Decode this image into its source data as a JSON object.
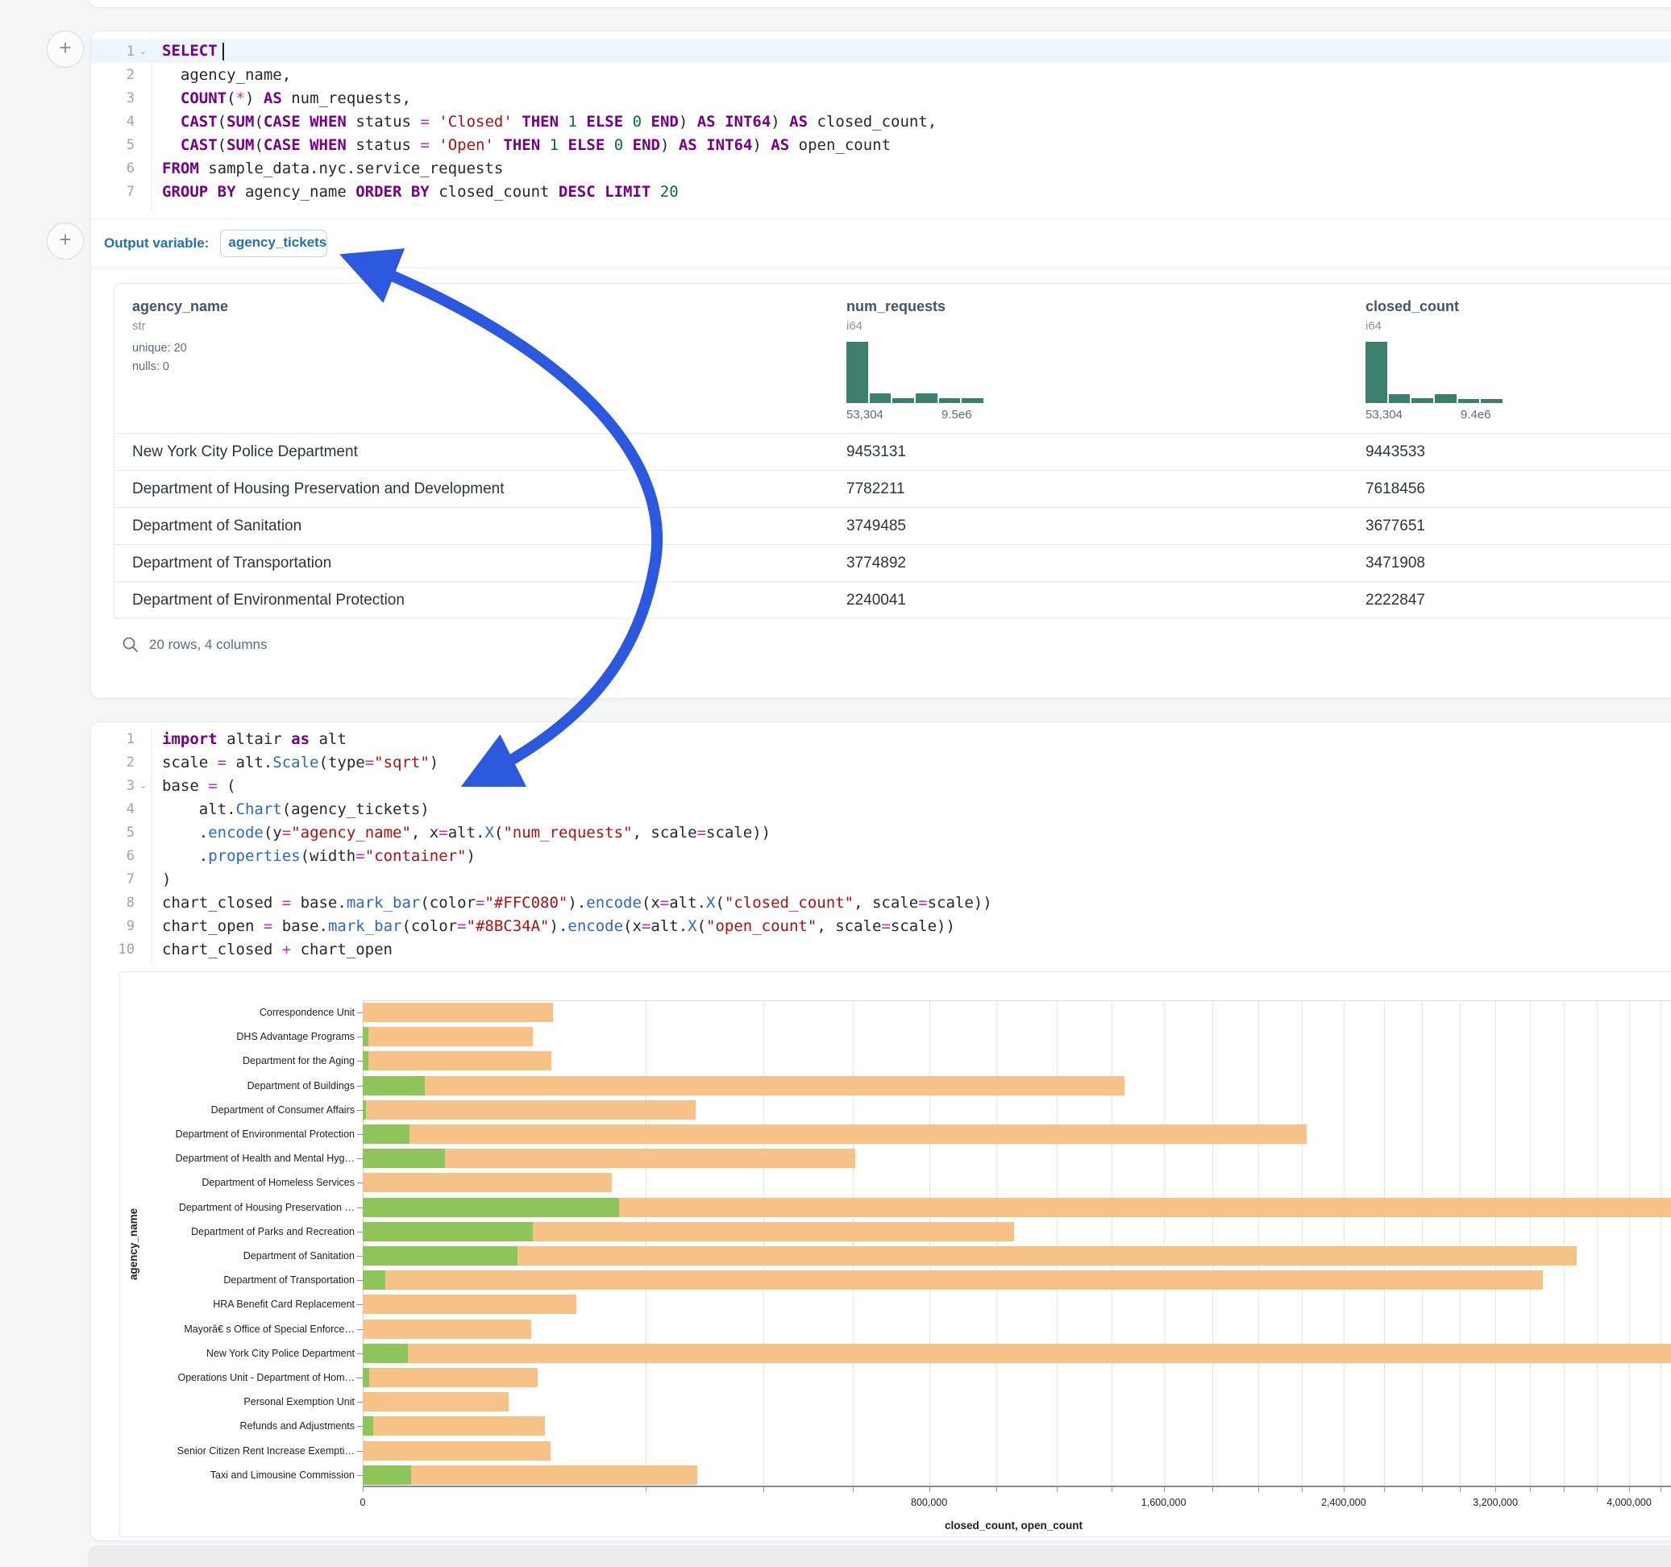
{
  "annotation": {
    "arrow_color": "#2b58dd"
  },
  "sql_cell": {
    "output_label": "Output variable:",
    "output_variable": "agency_tickets",
    "lines": [
      [
        {
          "t": "SELECT",
          "c": "k"
        }
      ],
      [
        {
          "t": "  agency_name,",
          "c": "d"
        }
      ],
      [
        {
          "t": "  ",
          "c": "d"
        },
        {
          "t": "COUNT",
          "c": "k"
        },
        {
          "t": "(",
          "c": "d"
        },
        {
          "t": "*",
          "c": "o"
        },
        {
          "t": ") ",
          "c": "d"
        },
        {
          "t": "AS",
          "c": "k"
        },
        {
          "t": " num_requests,",
          "c": "d"
        }
      ],
      [
        {
          "t": "  ",
          "c": "d"
        },
        {
          "t": "CAST",
          "c": "k"
        },
        {
          "t": "(",
          "c": "d"
        },
        {
          "t": "SUM",
          "c": "k"
        },
        {
          "t": "(",
          "c": "d"
        },
        {
          "t": "CASE",
          "c": "k"
        },
        {
          "t": " ",
          "c": "d"
        },
        {
          "t": "WHEN",
          "c": "k"
        },
        {
          "t": " status ",
          "c": "d"
        },
        {
          "t": "=",
          "c": "o"
        },
        {
          "t": " ",
          "c": "d"
        },
        {
          "t": "'Closed'",
          "c": "s"
        },
        {
          "t": " ",
          "c": "d"
        },
        {
          "t": "THEN",
          "c": "k"
        },
        {
          "t": " ",
          "c": "d"
        },
        {
          "t": "1",
          "c": "n"
        },
        {
          "t": " ",
          "c": "d"
        },
        {
          "t": "ELSE",
          "c": "k"
        },
        {
          "t": " ",
          "c": "d"
        },
        {
          "t": "0",
          "c": "n"
        },
        {
          "t": " ",
          "c": "d"
        },
        {
          "t": "END",
          "c": "k"
        },
        {
          "t": ") ",
          "c": "d"
        },
        {
          "t": "AS",
          "c": "k"
        },
        {
          "t": " ",
          "c": "d"
        },
        {
          "t": "INT64",
          "c": "k"
        },
        {
          "t": ") ",
          "c": "d"
        },
        {
          "t": "AS",
          "c": "k"
        },
        {
          "t": " closed_count,",
          "c": "d"
        }
      ],
      [
        {
          "t": "  ",
          "c": "d"
        },
        {
          "t": "CAST",
          "c": "k"
        },
        {
          "t": "(",
          "c": "d"
        },
        {
          "t": "SUM",
          "c": "k"
        },
        {
          "t": "(",
          "c": "d"
        },
        {
          "t": "CASE",
          "c": "k"
        },
        {
          "t": " ",
          "c": "d"
        },
        {
          "t": "WHEN",
          "c": "k"
        },
        {
          "t": " status ",
          "c": "d"
        },
        {
          "t": "=",
          "c": "o"
        },
        {
          "t": " ",
          "c": "d"
        },
        {
          "t": "'Open'",
          "c": "s"
        },
        {
          "t": " ",
          "c": "d"
        },
        {
          "t": "THEN",
          "c": "k"
        },
        {
          "t": " ",
          "c": "d"
        },
        {
          "t": "1",
          "c": "n"
        },
        {
          "t": " ",
          "c": "d"
        },
        {
          "t": "ELSE",
          "c": "k"
        },
        {
          "t": " ",
          "c": "d"
        },
        {
          "t": "0",
          "c": "n"
        },
        {
          "t": " ",
          "c": "d"
        },
        {
          "t": "END",
          "c": "k"
        },
        {
          "t": ") ",
          "c": "d"
        },
        {
          "t": "AS",
          "c": "k"
        },
        {
          "t": " ",
          "c": "d"
        },
        {
          "t": "INT64",
          "c": "k"
        },
        {
          "t": ") ",
          "c": "d"
        },
        {
          "t": "AS",
          "c": "k"
        },
        {
          "t": " open_count",
          "c": "d"
        }
      ],
      [
        {
          "t": "FROM",
          "c": "k"
        },
        {
          "t": " sample_data.nyc.service_requests",
          "c": "d"
        }
      ],
      [
        {
          "t": "GROUP BY",
          "c": "k"
        },
        {
          "t": " agency_name ",
          "c": "d"
        },
        {
          "t": "ORDER BY",
          "c": "k"
        },
        {
          "t": " closed_count ",
          "c": "d"
        },
        {
          "t": "DESC",
          "c": "k"
        },
        {
          "t": " ",
          "c": "d"
        },
        {
          "t": "LIMIT",
          "c": "k"
        },
        {
          "t": " ",
          "c": "d"
        },
        {
          "t": "20",
          "c": "n"
        }
      ]
    ]
  },
  "table": {
    "columns": [
      {
        "name": "agency_name",
        "type": "str",
        "stats": [
          "unique: 20",
          "nulls: 0"
        ]
      },
      {
        "name": "num_requests",
        "type": "i64",
        "hist": [
          1.0,
          0.16,
          0.08,
          0.16,
          0.08,
          0.08
        ],
        "hist_min": "53,304",
        "hist_max": "9.5e6"
      },
      {
        "name": "closed_count",
        "type": "i64",
        "hist": [
          1.0,
          0.15,
          0.08,
          0.15,
          0.07,
          0.07
        ],
        "hist_min": "53,304",
        "hist_max": "9.4e6"
      }
    ],
    "rows": [
      [
        "New York City Police Department",
        "9453131",
        "9443533"
      ],
      [
        "Department of Housing Preservation and Development",
        "7782211",
        "7618456"
      ],
      [
        "Department of Sanitation",
        "3749485",
        "3677651"
      ],
      [
        "Department of Transportation",
        "3774892",
        "3471908"
      ],
      [
        "Department of Environmental Protection",
        "2240041",
        "2222847"
      ]
    ],
    "footer": "20 rows, 4 columns"
  },
  "python_cell": {
    "lines": [
      [
        {
          "t": "import",
          "c": "k"
        },
        {
          "t": " altair ",
          "c": "d"
        },
        {
          "t": "as",
          "c": "k"
        },
        {
          "t": " alt",
          "c": "d"
        }
      ],
      [
        {
          "t": "scale ",
          "c": "d"
        },
        {
          "t": "=",
          "c": "o"
        },
        {
          "t": " alt.",
          "c": "d"
        },
        {
          "t": "Scale",
          "c": "f"
        },
        {
          "t": "(type",
          "c": "d"
        },
        {
          "t": "=",
          "c": "o"
        },
        {
          "t": "\"sqrt\"",
          "c": "s"
        },
        {
          "t": ")",
          "c": "d"
        }
      ],
      [
        {
          "t": "base ",
          "c": "d"
        },
        {
          "t": "=",
          "c": "o"
        },
        {
          "t": " (",
          "c": "d"
        }
      ],
      [
        {
          "t": "    alt.",
          "c": "d"
        },
        {
          "t": "Chart",
          "c": "f"
        },
        {
          "t": "(agency_tickets)",
          "c": "d"
        }
      ],
      [
        {
          "t": "    .",
          "c": "d"
        },
        {
          "t": "encode",
          "c": "f"
        },
        {
          "t": "(y",
          "c": "d"
        },
        {
          "t": "=",
          "c": "o"
        },
        {
          "t": "\"agency_name\"",
          "c": "s"
        },
        {
          "t": ", x",
          "c": "d"
        },
        {
          "t": "=",
          "c": "o"
        },
        {
          "t": "alt.",
          "c": "d"
        },
        {
          "t": "X",
          "c": "f"
        },
        {
          "t": "(",
          "c": "d"
        },
        {
          "t": "\"num_requests\"",
          "c": "s"
        },
        {
          "t": ", scale",
          "c": "d"
        },
        {
          "t": "=",
          "c": "o"
        },
        {
          "t": "scale))",
          "c": "d"
        }
      ],
      [
        {
          "t": "    .",
          "c": "d"
        },
        {
          "t": "properties",
          "c": "f"
        },
        {
          "t": "(width",
          "c": "d"
        },
        {
          "t": "=",
          "c": "o"
        },
        {
          "t": "\"container\"",
          "c": "s"
        },
        {
          "t": ")",
          "c": "d"
        }
      ],
      [
        {
          "t": ")",
          "c": "d"
        }
      ],
      [
        {
          "t": "chart_closed ",
          "c": "d"
        },
        {
          "t": "=",
          "c": "o"
        },
        {
          "t": " base.",
          "c": "d"
        },
        {
          "t": "mark_bar",
          "c": "f"
        },
        {
          "t": "(color",
          "c": "d"
        },
        {
          "t": "=",
          "c": "o"
        },
        {
          "t": "\"#FFC080\"",
          "c": "s"
        },
        {
          "t": ").",
          "c": "d"
        },
        {
          "t": "encode",
          "c": "f"
        },
        {
          "t": "(x",
          "c": "d"
        },
        {
          "t": "=",
          "c": "o"
        },
        {
          "t": "alt.",
          "c": "d"
        },
        {
          "t": "X",
          "c": "f"
        },
        {
          "t": "(",
          "c": "d"
        },
        {
          "t": "\"closed_count\"",
          "c": "s"
        },
        {
          "t": ", scale",
          "c": "d"
        },
        {
          "t": "=",
          "c": "o"
        },
        {
          "t": "scale))",
          "c": "d"
        }
      ],
      [
        {
          "t": "chart_open ",
          "c": "d"
        },
        {
          "t": "=",
          "c": "o"
        },
        {
          "t": " base.",
          "c": "d"
        },
        {
          "t": "mark_bar",
          "c": "f"
        },
        {
          "t": "(color",
          "c": "d"
        },
        {
          "t": "=",
          "c": "o"
        },
        {
          "t": "\"#8BC34A\"",
          "c": "s"
        },
        {
          "t": ").",
          "c": "d"
        },
        {
          "t": "encode",
          "c": "f"
        },
        {
          "t": "(x",
          "c": "d"
        },
        {
          "t": "=",
          "c": "o"
        },
        {
          "t": "alt.",
          "c": "d"
        },
        {
          "t": "X",
          "c": "f"
        },
        {
          "t": "(",
          "c": "d"
        },
        {
          "t": "\"open_count\"",
          "c": "s"
        },
        {
          "t": ", scale",
          "c": "d"
        },
        {
          "t": "=",
          "c": "o"
        },
        {
          "t": "scale))",
          "c": "d"
        }
      ],
      [
        {
          "t": "chart_closed ",
          "c": "d"
        },
        {
          "t": "+",
          "c": "o"
        },
        {
          "t": " chart_open",
          "c": "d"
        }
      ]
    ]
  },
  "chart_data": {
    "type": "bar",
    "orientation": "horizontal",
    "x_scale": "sqrt",
    "xlabel": "closed_count, open_count",
    "ylabel": "agency_name",
    "x_ticks": [
      {
        "v": 0,
        "label": "0"
      },
      {
        "v": 800000,
        "label": "800,000"
      },
      {
        "v": 1600000,
        "label": "1,600,000"
      },
      {
        "v": 2400000,
        "label": "2,400,000"
      },
      {
        "v": 3200000,
        "label": "3,200,000"
      },
      {
        "v": 4000000,
        "label": "4,000,000"
      }
    ],
    "minor_grid_step": 200000,
    "colors": {
      "closed": "#F6C287",
      "open": "#8FC45A"
    },
    "categories": [
      "Correspondence Unit",
      "DHS Advantage Programs",
      "Department for the Aging",
      "Department of Buildings",
      "Department of Consumer Affairs",
      "Department of Environmental Protection",
      "Department of Health and Mental Hyg…",
      "Department of Homeless Services",
      "Department of Housing Preservation …",
      "Department of Parks and Recreation",
      "Department of Sanitation",
      "Department of Transportation",
      "HRA Benefit Card Replacement",
      "Mayorâ€ s Office of Special Enforce…",
      "New York City Police Department",
      "Operations Unit - Department of Hom…",
      "Personal Exemption Unit",
      "Refunds and Adjustments",
      "Senior Citizen Rent Increase Exempti…",
      "Taxi and Limousine Commission"
    ],
    "series": [
      {
        "name": "closed_count",
        "values": [
          90000,
          72000,
          89000,
          1446000,
          277000,
          2222847,
          604000,
          155000,
          7618456,
          1057000,
          3677651,
          3471908,
          114000,
          71000,
          9443533,
          76000,
          53304,
          83000,
          88000,
          279000
        ]
      },
      {
        "name": "open_count",
        "values": [
          0,
          80,
          80,
          9500,
          30,
          5400,
          17000,
          0,
          163755,
          72000,
          60000,
          1300,
          0,
          0,
          5000,
          100,
          0,
          280,
          0,
          5900
        ]
      }
    ]
  }
}
